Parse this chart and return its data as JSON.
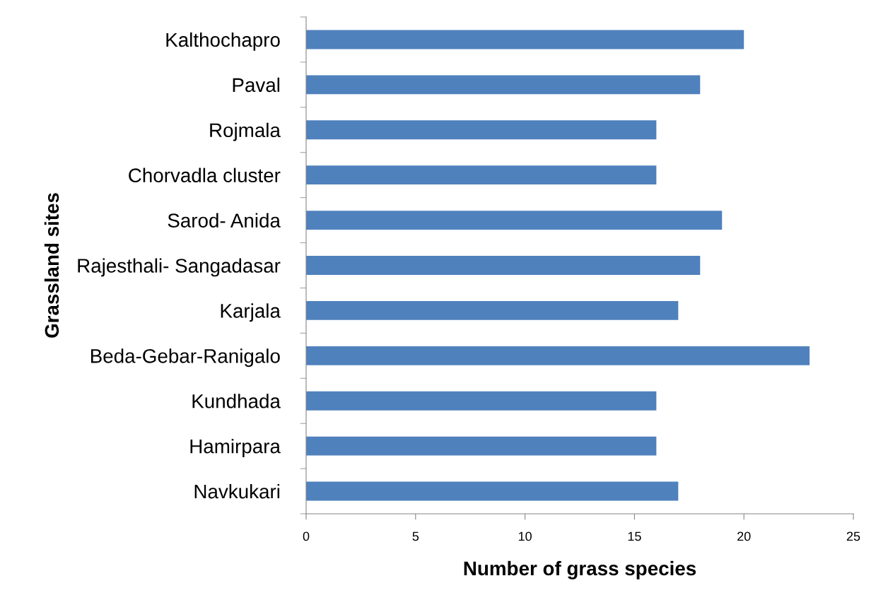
{
  "chart_data": {
    "type": "bar",
    "orientation": "horizontal",
    "xlabel": "Number of grass species",
    "ylabel": "Grassland sites",
    "categories": [
      "Kalthochapro",
      "Paval",
      "Rojmala",
      "Chorvadla cluster",
      "Sarod- Anida",
      "Rajesthali- Sangadasar",
      "Karjala",
      "Beda-Gebar-Ranigalo",
      "Kundhada",
      "Hamirpara",
      "Navkukari"
    ],
    "values": [
      20,
      18,
      16,
      16,
      19,
      18,
      17,
      23,
      16,
      16,
      17
    ],
    "color": "#4f81bd",
    "xlim": [
      0,
      25
    ],
    "xticks": [
      0,
      5,
      10,
      15,
      20,
      25
    ],
    "grid": false,
    "legend": false
  }
}
